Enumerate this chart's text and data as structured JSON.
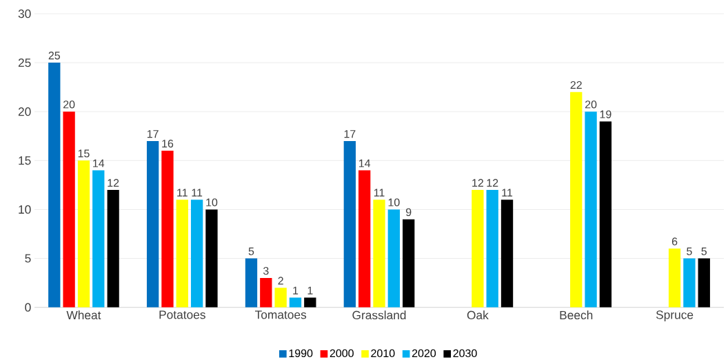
{
  "chart_data": {
    "type": "bar",
    "categories": [
      "Wheat",
      "Potatoes",
      "Tomatoes",
      "Grassland",
      "Oak",
      "Beech",
      "Spruce"
    ],
    "series": [
      {
        "name": "1990",
        "color": "#0070c0",
        "values": [
          25,
          17,
          5,
          17,
          null,
          null,
          null
        ]
      },
      {
        "name": "2000",
        "color": "#ff0000",
        "values": [
          20,
          16,
          3,
          14,
          null,
          null,
          null
        ]
      },
      {
        "name": "2010",
        "color": "#ffff00",
        "values": [
          15,
          11,
          2,
          11,
          12,
          22,
          6
        ]
      },
      {
        "name": "2020",
        "color": "#00b0f0",
        "values": [
          14,
          11,
          1,
          10,
          12,
          20,
          5
        ]
      },
      {
        "name": "2030",
        "color": "#000000",
        "values": [
          12,
          10,
          1,
          9,
          11,
          19,
          5
        ]
      }
    ],
    "ylim": [
      0,
      30
    ],
    "yticks": [
      0,
      5,
      10,
      15,
      20,
      25,
      30
    ],
    "grid": "y",
    "legend": "bottom",
    "data_labels": true
  }
}
